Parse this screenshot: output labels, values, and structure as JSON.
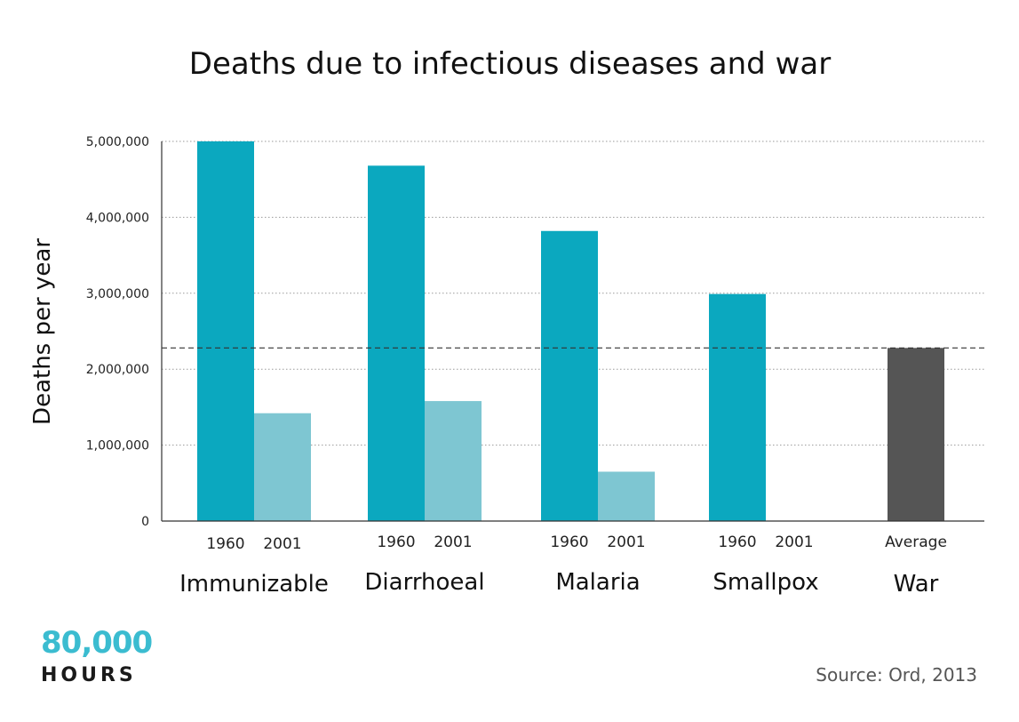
{
  "chart_data": {
    "type": "bar",
    "title": "Deaths due to infectious diseases and war",
    "ylabel": "Deaths per year",
    "xlabel": "",
    "ylim": [
      0,
      5000000
    ],
    "y_ticks": [
      0,
      1000000,
      2000000,
      3000000,
      4000000,
      5000000
    ],
    "y_tick_labels": [
      "0",
      "1,000,000",
      "2,000,000",
      "3,000,000",
      "4,000,000",
      "5,000,000"
    ],
    "grid": true,
    "reference_line": {
      "value": 2280000,
      "style": "dashed"
    },
    "groups": [
      {
        "name": "Immunizable",
        "bars": [
          {
            "label": "1960",
            "value": 5000000,
            "color": "#0ba8bf"
          },
          {
            "label": "2001",
            "value": 1420000,
            "color": "#7ec6d2"
          }
        ]
      },
      {
        "name": "Diarrhoeal",
        "bars": [
          {
            "label": "1960",
            "value": 4680000,
            "color": "#0ba8bf"
          },
          {
            "label": "2001",
            "value": 1580000,
            "color": "#7ec6d2"
          }
        ]
      },
      {
        "name": "Malaria",
        "bars": [
          {
            "label": "1960",
            "value": 3820000,
            "color": "#0ba8bf"
          },
          {
            "label": "2001",
            "value": 650000,
            "color": "#7ec6d2"
          }
        ]
      },
      {
        "name": "Smallpox",
        "bars": [
          {
            "label": "1960",
            "value": 2990000,
            "color": "#0ba8bf"
          },
          {
            "label": "2001",
            "value": 0,
            "color": "#7ec6d2"
          }
        ]
      },
      {
        "name": "War",
        "bars": [
          {
            "label": "Average",
            "value": 2280000,
            "color": "#555555"
          }
        ]
      }
    ]
  },
  "branding": {
    "logo_number": "80,000",
    "logo_word": "HOURS",
    "logo_color": "#3bbcd0",
    "logo_word_color": "#1a1a1a"
  },
  "source_text": "Source: Ord, 2013"
}
